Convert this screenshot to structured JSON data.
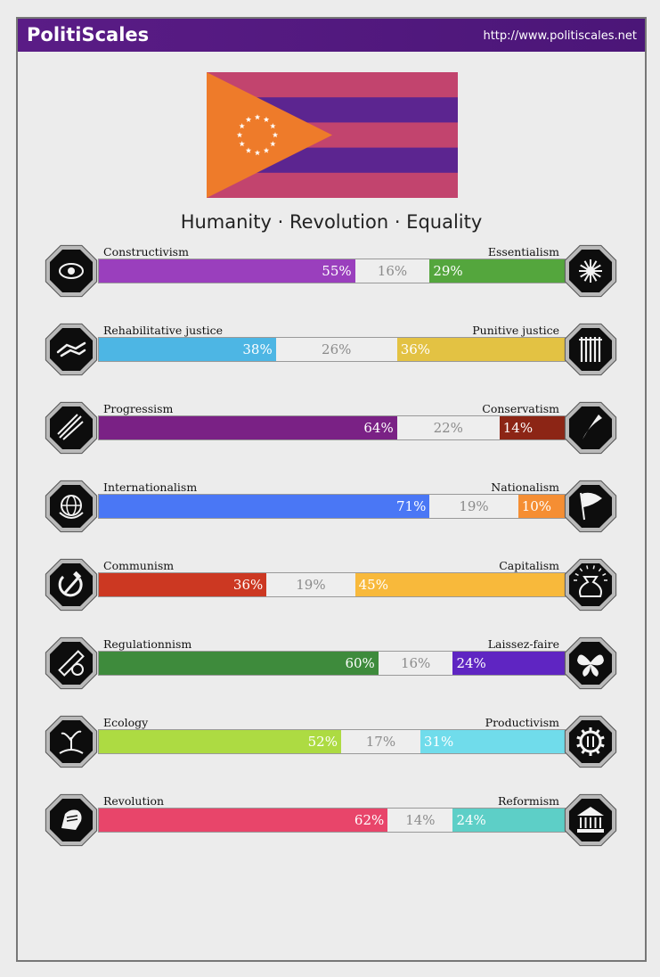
{
  "header": {
    "brand": "PolitiScales",
    "url": "http://www.politiscales.net"
  },
  "slogan": "Humanity · Revolution · Equality",
  "flag": {
    "stripe_colors": [
      "#c2446e",
      "#5c2590"
    ],
    "triangle_color": "#ee7b2a",
    "star_color": "#ffffff",
    "stars": 12
  },
  "axes": [
    {
      "left_label": "Constructivism",
      "right_label": "Essentialism",
      "left_pct": 55,
      "center_pct": 16,
      "right_pct": 29,
      "left_text": "55%",
      "center_text": "16%",
      "right_text": "29%",
      "left_color": "#9a3fbd",
      "right_color": "#54a63d",
      "left_icon": "eye-icon",
      "right_icon": "dna-flower-icon"
    },
    {
      "left_label": "Rehabilitative justice",
      "right_label": "Punitive justice",
      "left_pct": 38,
      "center_pct": 26,
      "right_pct": 36,
      "left_text": "38%",
      "center_text": "26%",
      "right_text": "36%",
      "left_color": "#4db6e4",
      "right_color": "#e3c243",
      "left_icon": "handshake-icon",
      "right_icon": "prison-bars-icon"
    },
    {
      "left_label": "Progressism",
      "right_label": "Conservatism",
      "left_pct": 64,
      "center_pct": 22,
      "right_pct": 14,
      "left_text": "64%",
      "center_text": "22%",
      "right_text": "14%",
      "left_color": "#7a2185",
      "right_color": "#8c2515",
      "left_icon": "rocket-icon",
      "right_icon": "quill-icon"
    },
    {
      "left_label": "Internationalism",
      "right_label": "Nationalism",
      "left_pct": 71,
      "center_pct": 19,
      "right_pct": 10,
      "left_text": "71%",
      "center_text": "19%",
      "right_text": "10%",
      "left_color": "#4a77f5",
      "right_color": "#f58e33",
      "left_icon": "globe-icon",
      "right_icon": "flag-icon"
    },
    {
      "left_label": "Communism",
      "right_label": "Capitalism",
      "left_pct": 36,
      "center_pct": 19,
      "right_pct": 45,
      "left_text": "36%",
      "center_text": "19%",
      "right_text": "45%",
      "left_color": "#cc3822",
      "right_color": "#f8b93b",
      "left_icon": "hammer-sickle-icon",
      "right_icon": "money-bag-icon"
    },
    {
      "left_label": "Regulationnism",
      "right_label": "Laissez-faire",
      "left_pct": 60,
      "center_pct": 16,
      "right_pct": 24,
      "left_text": "60%",
      "center_text": "16%",
      "right_text": "24%",
      "left_color": "#3e8b3c",
      "right_color": "#5f25c2",
      "left_icon": "ruler-icon",
      "right_icon": "butterfly-icon"
    },
    {
      "left_label": "Ecology",
      "right_label": "Productivism",
      "left_pct": 52,
      "center_pct": 17,
      "right_pct": 31,
      "left_text": "52%",
      "center_text": "17%",
      "right_text": "31%",
      "left_color": "#addb42",
      "right_color": "#70dceb",
      "left_icon": "plant-icon",
      "right_icon": "gear-icon"
    },
    {
      "left_label": "Revolution",
      "right_label": "Reformism",
      "left_pct": 62,
      "center_pct": 14,
      "right_pct": 24,
      "left_text": "62%",
      "center_text": "14%",
      "right_text": "24%",
      "left_color": "#e8456a",
      "right_color": "#5dcfc7",
      "left_icon": "fist-icon",
      "right_icon": "temple-icon"
    }
  ]
}
